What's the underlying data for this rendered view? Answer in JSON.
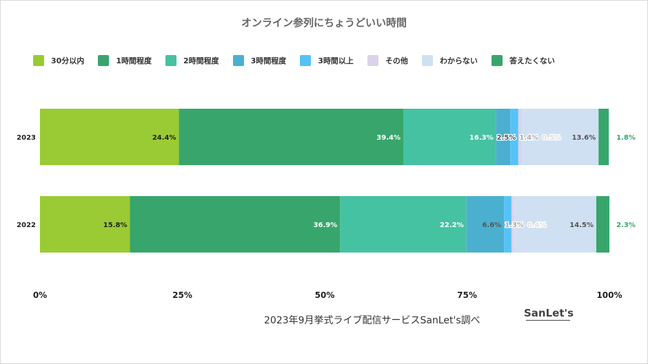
{
  "chart_data": {
    "type": "bar",
    "orientation": "horizontal",
    "stacked": "percent",
    "title": "オンライン参列にちょうどいい時間",
    "categories": [
      "2023",
      "2022"
    ],
    "series": [
      {
        "name": "30分以内",
        "color": "#9acb34",
        "values": [
          24.4,
          15.8
        ]
      },
      {
        "name": "1時間程度",
        "color": "#38a66c",
        "values": [
          39.4,
          36.9
        ]
      },
      {
        "name": "2時間程度",
        "color": "#45c2a2",
        "values": [
          16.3,
          22.2
        ]
      },
      {
        "name": "3時間程度",
        "color": "#4bb0d0",
        "values": [
          2.5,
          6.6
        ]
      },
      {
        "name": "3時間以上",
        "color": "#55c3f7",
        "values": [
          1.4,
          1.3
        ]
      },
      {
        "name": "その他",
        "color": "#dad3ea",
        "values": [
          0.5,
          0.4
        ]
      },
      {
        "name": "わからない",
        "color": "#cfe0f2",
        "values": [
          13.6,
          14.5
        ]
      },
      {
        "name": "答えたくない",
        "color": "#38a66c",
        "values": [
          1.8,
          2.3
        ]
      }
    ],
    "xticks": [
      "0%",
      "25%",
      "50%",
      "75%",
      "100%"
    ],
    "xlim": [
      0,
      100
    ],
    "legend": "top",
    "grid": false
  },
  "footer": {
    "source": "2023年9月挙式ライブ配信サービスSanLet's調べ",
    "logo_text": "SanLet's",
    "logo_sub": "サンレッツ"
  }
}
